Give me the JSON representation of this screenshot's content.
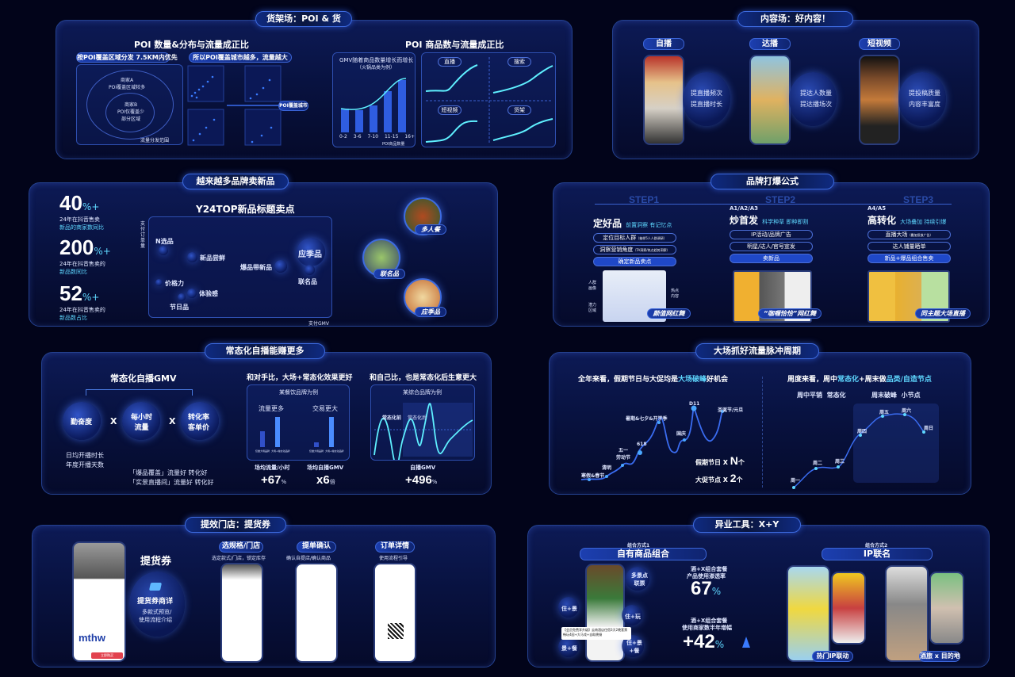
{
  "s1": {
    "title": "货架场：POI & 货",
    "left_title": "POI 数量&分布与流量成正比",
    "tag1": "按POI覆盖区域分发 7.5KM内优先",
    "tag2": "所以POI覆盖城市越多，流量越大",
    "merchant_a": "商家A\nPOI覆盖区域较多",
    "merchant_b": "商家B\nPOI仅覆盖少部分区域",
    "range": "流量分发范围",
    "poi_city": "POI覆盖城市",
    "right_title": "POI 商品数与流量成正比",
    "bar_title": "GMV随着商品数量增长而增长",
    "bar_sub": "（火锅品类为例）",
    "bar_cats": [
      "0-2",
      "3-6",
      "7-10",
      "11-15",
      "16+"
    ],
    "bar_xlabel": "POI商品数量",
    "q": [
      "直播",
      "搜索",
      "短视频",
      "货架"
    ]
  },
  "s2": {
    "title": "内容场：好内容！",
    "cols": [
      {
        "tag": "自播",
        "l1": "提直播频次",
        "l2": "提直播时长"
      },
      {
        "tag": "达播",
        "l1": "提达人数量",
        "l2": "提达播场次"
      },
      {
        "tag": "短视频",
        "l1": "提投稿质量",
        "l2": "内容丰富度"
      }
    ]
  },
  "s3": {
    "title": "越来越多品牌卖新品",
    "stats": [
      {
        "n": "40",
        "u": "%+",
        "l1": "24年在抖音售卖",
        "l2": "新品的商家数同比"
      },
      {
        "n": "200",
        "u": "%+",
        "l1": "24年在抖音售卖的",
        "l2": "新品数同比"
      },
      {
        "n": "52",
        "u": "%+",
        "l1": "24年在抖音售卖的",
        "l2": "新品数占比"
      }
    ],
    "chart_title": "Y24TOP新品标题卖点",
    "ylabel": "支付订单量",
    "xlabel": "支付GMV",
    "bubbles": [
      "N选品",
      "新品尝鲜",
      "价格力",
      "体验感",
      "节日品",
      "爆品带新品",
      "应季品",
      "联名品"
    ],
    "badges": [
      "多人餐",
      "联名品",
      "应季品"
    ]
  },
  "s4": {
    "title": "品牌打爆公式",
    "steps": [
      {
        "step": "STEP1",
        "code": "",
        "name": "定好品",
        "sub": "前置洞察 有记忆点",
        "b1": "定位目标人群",
        "b1s": "（抽样5人人群调研）",
        "b2": "洞察营销角度",
        "b2s": "（TA洞察/热点趋势洞察）",
        "b3": "确定新品卖点",
        "caption": "颜值网红舞"
      },
      {
        "step": "STEP2",
        "code": "A1/A2/A3",
        "name": "炒首发",
        "sub": "科学种草 即种即割",
        "b1": "IP活动/品牌广告",
        "b1s": "",
        "b2": "明星/达人/官号宣发",
        "b2s": "",
        "b3": "卖新品",
        "caption": "“咖喱恰恰”网红舞"
      },
      {
        "step": "STEP3",
        "code": "A4/A5",
        "name": "高转化",
        "sub": "大场叠加 持续引爆",
        "b1": "直播大场",
        "b1s": "（叠加投放广告）",
        "b2": "达人铺量晒单",
        "b2s": "",
        "b3": "新品+爆品组合售卖",
        "caption": "同主题大场直播"
      }
    ],
    "side": [
      "人群\n画像",
      "热点\n内容",
      "潜力\n区域"
    ]
  },
  "s5": {
    "title": "常态化自播能赚更多",
    "gmv": "常态化自播GMV",
    "orbs": [
      "勤奋度",
      "每小时\n流量",
      "转化率\n客单价"
    ],
    "x": "X",
    "diligence1": "日均开播时长",
    "diligence2": "年度开播天数",
    "note1": "「爆品覆盖」流量好 转化好",
    "note2": "「实景直播间」流量好 转化好",
    "c2_title": "和对手比，大场+常态化效果更好",
    "c2_sub": "某餐饮品牌为例",
    "c2_a": "流量更多",
    "c2_b": "交易更大",
    "c2_bar_labels": [
      "仅做大场品牌",
      "大场+常态化品牌",
      "仅做大场品牌",
      "大场+常态化品牌"
    ],
    "m1_label": "场均流量/小时",
    "m1": "+67",
    "m1u": "%",
    "m2_label": "场均自播GMV",
    "m2": "x6",
    "m2u": "倍",
    "c3_title": "和自己比，也是常态化后生意更大",
    "c3_sub": "某综合品牌为例",
    "before": "常态化前",
    "after": "常态化后",
    "m3_label": "自播GMV",
    "m3": "+496",
    "m3u": "%"
  },
  "s6": {
    "title": "大场抓好流量脉冲周期",
    "left_title_a": "全年来看，假期节日与大促均是",
    "left_title_b": "大场破峰",
    "left_title_c": "好机会",
    "year_points": [
      "寒假&春节",
      "清明",
      "五一\n劳动节",
      "618",
      "暑期&七夕&开学季",
      "国庆",
      "D11",
      "圣诞节/元旦"
    ],
    "holiday": "假期节日 X ",
    "holiday_n": "N",
    "holiday_u": "个",
    "promo": "大促节点 X ",
    "promo_n": "2",
    "promo_u": "个",
    "right_title_a": "周度来看，周中",
    "right_title_b": "常态化",
    "right_title_c": "+周末做",
    "right_title_d": "品类/自造节点",
    "mid": "周中平销  常态化",
    "weekend": "周末破峰  小节点",
    "days": [
      "周一",
      "周二",
      "周三",
      "周四",
      "周五",
      "周六",
      "周日"
    ]
  },
  "s7": {
    "title": "提效门店：提货券",
    "coupon": "提货券",
    "detail": "提货券商详",
    "detail_sub1": "多款式预览/",
    "detail_sub2": "使用流程介绍",
    "steps": [
      {
        "tag": "选规格/门店",
        "sub": "选定款式/门店，锁定库存"
      },
      {
        "tag": "提单确认",
        "sub": "确认自提店/确认商品"
      },
      {
        "tag": "订单详情",
        "sub": "使用流程引导"
      }
    ],
    "brand": "mthw",
    "buy": "立即购买"
  },
  "s8": {
    "title": "异业工具：X+Y",
    "m1_small": "组合方式1",
    "m1": "自有商品组合",
    "combos": [
      "住+景",
      "多景点\n联票",
      "住+玩",
      "景+餐",
      "住+景\n+餐"
    ],
    "callout": "【会员免费享升级】云南酒店住宿3天2晚套票畅玩4园+大马戏+自助晚餐",
    "k1_label1": "酒+X组合套餐",
    "k1_label2": "产品使用渗透率",
    "k1": "67",
    "k1u": "%",
    "k2_label1": "酒+X组合套餐",
    "k2_label2": "使用商家数半年增幅",
    "k2": "+42",
    "k2u": "%",
    "m2_small": "组合方式2",
    "m2": "IP联名",
    "ip1": "热门IP联动",
    "ip2": "酒旅 x 目的地"
  },
  "colors": {
    "bg": "#02041a",
    "panel": "#0a1650",
    "accent": "#5fd8ff",
    "border": "#2c4fb8"
  }
}
